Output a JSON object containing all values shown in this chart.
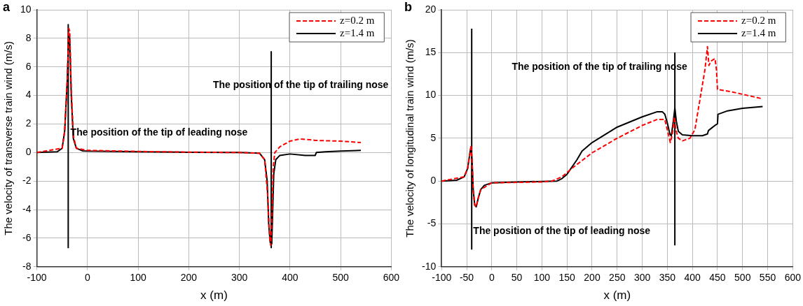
{
  "chart_data": [
    {
      "type": "line",
      "title": "a",
      "xlabel": "x (m)",
      "ylabel": "The velocity of transverse train wind (m/s)",
      "xlim": [
        -100,
        600
      ],
      "xticks": [
        -100,
        0,
        100,
        200,
        300,
        400,
        500,
        600
      ],
      "ylim": [
        -8,
        10
      ],
      "yticks": [
        -8,
        -6,
        -4,
        -2,
        0,
        2,
        4,
        6,
        8,
        10
      ],
      "grid": true,
      "legend": "top right",
      "marker": "none",
      "series": [
        {
          "name": "z=0.2 m",
          "color": "#ff0000",
          "line_style": "dashed",
          "x": [
            -100,
            -50,
            -45,
            -40,
            -37,
            -35,
            -32,
            -28,
            -22,
            0,
            100,
            200,
            300,
            340,
            350,
            356,
            360,
            362,
            364,
            367,
            370,
            380,
            400,
            420,
            440,
            450,
            500,
            540
          ],
          "values": [
            0,
            0.3,
            1.5,
            5,
            8.7,
            8.5,
            4.5,
            1.2,
            0.3,
            0.15,
            0.08,
            0.03,
            0,
            -0.05,
            -0.5,
            -3,
            -6,
            -6.5,
            -5,
            -1,
            0,
            0.4,
            0.8,
            0.95,
            0.9,
            0.85,
            0.8,
            0.7
          ]
        },
        {
          "name": "z=1.4 m",
          "color": "#000000",
          "line_style": "solid",
          "x": [
            -100,
            -60,
            -50,
            -45,
            -40,
            -37,
            -35,
            -32,
            -28,
            -22,
            -10,
            0,
            100,
            200,
            300,
            340,
            350,
            355,
            358,
            361,
            364,
            366,
            368,
            372,
            380,
            400,
            430,
            450,
            452,
            470,
            500,
            540
          ],
          "values": [
            0,
            0.05,
            0.3,
            1.5,
            5,
            8.2,
            8,
            4,
            1,
            0.3,
            0.12,
            0.1,
            0.05,
            0.02,
            0,
            -0.05,
            -0.5,
            -2,
            -5,
            -6.3,
            -6.4,
            -4,
            -1.5,
            -0.5,
            -0.2,
            -0.1,
            -0.2,
            -0.2,
            0,
            0.05,
            0.1,
            0.15
          ]
        },
        {
          "color": "#000000",
          "line_style": "solid",
          "x": [
            -38,
            -38
          ],
          "values": [
            -6.7,
            9
          ]
        },
        {
          "color": "#000000",
          "line_style": "solid",
          "x": [
            363,
            363
          ],
          "values": [
            -6.7,
            7.1
          ]
        }
      ],
      "annotations": [
        "The position of the tip of leading nose",
        "The position of the tip of trailing nose"
      ]
    },
    {
      "type": "line",
      "title": "b",
      "xlabel": "x (m)",
      "ylabel": "The velocity of longitudinal train wind (m/s)",
      "xlim": [
        -100,
        600
      ],
      "xticks": [
        -100,
        -50,
        0,
        50,
        100,
        150,
        200,
        250,
        300,
        350,
        400,
        450,
        500,
        550,
        600
      ],
      "ylim": [
        -10,
        20
      ],
      "yticks": [
        -10,
        -5,
        0,
        5,
        10,
        15,
        20
      ],
      "grid": true,
      "legend": "top right",
      "marker": "none",
      "series": [
        {
          "name": "z=0.2 m",
          "color": "#ff0000",
          "line_style": "dashed",
          "x": [
            -100,
            -55,
            -48,
            -43,
            -41,
            -39,
            -37,
            -34,
            -31,
            -27,
            -22,
            0,
            100,
            120,
            140,
            160,
            200,
            250,
            300,
            330,
            345,
            352,
            356,
            360,
            364,
            367,
            372,
            380,
            395,
            405,
            415,
            425,
            430,
            433,
            437,
            445,
            448,
            450,
            480,
            540
          ],
          "values": [
            0,
            0.5,
            1.5,
            3.5,
            4.2,
            2,
            -1,
            -2.8,
            -3,
            -2,
            -1,
            -0.2,
            -0.1,
            0,
            0.5,
            1.5,
            3.3,
            5,
            6.5,
            7.2,
            7.2,
            5.5,
            4.5,
            5.5,
            7.5,
            6,
            5,
            4.7,
            5,
            6,
            9.5,
            13,
            15.7,
            13.5,
            14,
            14.3,
            13,
            10.7,
            10.4,
            9.6
          ]
        },
        {
          "name": "z=1.4 m",
          "color": "#000000",
          "line_style": "solid",
          "x": [
            -100,
            -70,
            -55,
            -48,
            -43,
            -41,
            -39,
            -37,
            -34,
            -31,
            -27,
            -22,
            -15,
            0,
            50,
            130,
            140,
            150,
            170,
            180,
            200,
            250,
            300,
            330,
            340,
            345,
            350,
            355,
            358,
            362,
            365,
            368,
            372,
            380,
            400,
            420,
            430,
            432,
            445,
            450,
            451,
            470,
            500,
            540
          ],
          "values": [
            0,
            0.1,
            0.5,
            1.5,
            3.5,
            4,
            2,
            -1,
            -2.8,
            -3,
            -2,
            -1,
            -0.5,
            -0.2,
            -0.1,
            0,
            0.3,
            0.8,
            2.5,
            3.5,
            4.5,
            6.3,
            7.5,
            8.1,
            8.1,
            7.8,
            6.8,
            5.5,
            5.3,
            7,
            8.5,
            7,
            5.8,
            5.4,
            5.3,
            5.3,
            5.5,
            5.9,
            6.5,
            6.7,
            7.8,
            8.2,
            8.5,
            8.7
          ]
        },
        {
          "color": "#000000",
          "line_style": "solid",
          "x": [
            -40,
            -40
          ],
          "values": [
            -8,
            17.8
          ]
        },
        {
          "color": "#000000",
          "line_style": "solid",
          "x": [
            365,
            365
          ],
          "values": [
            -7.5,
            15
          ]
        }
      ],
      "annotations": [
        "The position of the tip of trailing nose",
        "The position of the tip of leading nose"
      ]
    }
  ]
}
